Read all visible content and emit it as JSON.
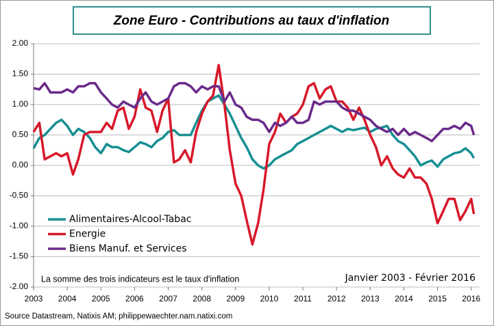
{
  "chart_data": {
    "type": "line",
    "title": "Zone Euro - Contributions au taux d'inflation",
    "note": "La somme  des trois indicateurs est le taux d'inflation",
    "period": "Janvier 2003 - Février 2016",
    "source": "Source Datastream, Natixis AM; philippewaechter.nam.natixi.com",
    "xlim": [
      2003,
      2016.25
    ],
    "xticks": [
      2003,
      2004,
      2005,
      2006,
      2007,
      2008,
      2009,
      2010,
      2011,
      2012,
      2013,
      2014,
      2015,
      2016
    ],
    "ylim": [
      -2,
      2
    ],
    "yticks": [
      {
        "value": 2,
        "label": "2.00"
      },
      {
        "value": 1.5,
        "label": "1.50"
      },
      {
        "value": 1,
        "label": "1.00"
      },
      {
        "value": 0.5,
        "label": "0.50"
      },
      {
        "value": 0,
        "label": "0.00"
      },
      {
        "value": -0.5,
        "label": "-0.50"
      },
      {
        "value": -1,
        "label": "-1.00"
      },
      {
        "value": -1.5,
        "label": "-1.50"
      },
      {
        "value": -2,
        "label": "-2.00"
      }
    ],
    "grid": true,
    "x": [
      2003,
      2003.17,
      2003.33,
      2003.5,
      2003.67,
      2003.83,
      2004,
      2004.17,
      2004.33,
      2004.5,
      2004.67,
      2004.83,
      2005,
      2005.17,
      2005.33,
      2005.5,
      2005.67,
      2005.83,
      2006,
      2006.17,
      2006.33,
      2006.5,
      2006.67,
      2006.83,
      2007,
      2007.17,
      2007.33,
      2007.5,
      2007.67,
      2007.83,
      2008,
      2008.17,
      2008.33,
      2008.5,
      2008.67,
      2008.83,
      2009,
      2009.17,
      2009.33,
      2009.5,
      2009.67,
      2009.83,
      2010,
      2010.17,
      2010.33,
      2010.5,
      2010.67,
      2010.83,
      2011,
      2011.17,
      2011.33,
      2011.5,
      2011.67,
      2011.83,
      2012,
      2012.17,
      2012.33,
      2012.5,
      2012.67,
      2012.83,
      2013,
      2013.17,
      2013.33,
      2013.5,
      2013.67,
      2013.83,
      2014,
      2014.17,
      2014.33,
      2014.5,
      2014.67,
      2014.83,
      2015,
      2015.17,
      2015.33,
      2015.5,
      2015.67,
      2015.83,
      2016,
      2016.08
    ],
    "series": [
      {
        "name": "Alimentaires-Alcool-Tabac",
        "color": "#178f93",
        "values": [
          0.28,
          0.45,
          0.5,
          0.6,
          0.7,
          0.75,
          0.65,
          0.5,
          0.6,
          0.55,
          0.45,
          0.3,
          0.2,
          0.35,
          0.3,
          0.3,
          0.25,
          0.22,
          0.3,
          0.38,
          0.35,
          0.3,
          0.4,
          0.45,
          0.55,
          0.58,
          0.5,
          0.5,
          0.5,
          0.7,
          0.9,
          1.05,
          1.1,
          1.15,
          1.0,
          0.85,
          0.65,
          0.45,
          0.3,
          0.1,
          0.0,
          -0.05,
          0.0,
          0.1,
          0.15,
          0.2,
          0.25,
          0.35,
          0.4,
          0.45,
          0.5,
          0.55,
          0.6,
          0.65,
          0.6,
          0.55,
          0.6,
          0.58,
          0.6,
          0.62,
          0.55,
          0.6,
          0.62,
          0.65,
          0.5,
          0.4,
          0.35,
          0.25,
          0.15,
          0.0,
          0.05,
          0.08,
          -0.02,
          0.1,
          0.15,
          0.2,
          0.22,
          0.28,
          0.2,
          0.12
        ]
      },
      {
        "name": "Energie",
        "color": "#d7182a",
        "values": [
          0.55,
          0.7,
          0.1,
          0.15,
          0.2,
          0.15,
          0.2,
          -0.15,
          0.1,
          0.5,
          0.55,
          0.55,
          0.55,
          0.7,
          0.6,
          0.9,
          0.95,
          0.6,
          0.8,
          1.25,
          0.95,
          0.9,
          0.55,
          0.9,
          1.1,
          0.05,
          0.1,
          0.25,
          0.05,
          0.55,
          0.85,
          1.05,
          1.15,
          1.65,
          1.0,
          0.25,
          -0.3,
          -0.5,
          -0.9,
          -1.3,
          -0.95,
          -0.4,
          0.35,
          0.55,
          0.85,
          0.7,
          0.8,
          0.85,
          1.0,
          1.3,
          1.35,
          1.1,
          1.25,
          1.3,
          1.05,
          1.05,
          0.95,
          0.75,
          0.95,
          0.75,
          0.5,
          0.3,
          0.0,
          0.15,
          -0.05,
          -0.15,
          -0.2,
          -0.05,
          -0.2,
          -0.2,
          -0.3,
          -0.55,
          -0.95,
          -0.75,
          -0.55,
          -0.55,
          -0.9,
          -0.75,
          -0.55,
          -0.8
        ]
      },
      {
        "name": "Biens Manuf. et Services",
        "color": "#6a2a8a",
        "values": [
          1.27,
          1.25,
          1.35,
          1.2,
          1.2,
          1.2,
          1.25,
          1.2,
          1.3,
          1.3,
          1.35,
          1.35,
          1.2,
          1.1,
          1.0,
          0.95,
          1.05,
          1.0,
          0.95,
          1.1,
          1.2,
          1.05,
          1.0,
          1.05,
          1.1,
          1.3,
          1.35,
          1.35,
          1.3,
          1.2,
          1.3,
          1.25,
          1.3,
          1.3,
          1.05,
          1.2,
          1.0,
          0.95,
          0.8,
          0.75,
          0.75,
          0.7,
          0.55,
          0.7,
          0.65,
          0.7,
          0.8,
          0.7,
          0.7,
          0.75,
          1.05,
          1.0,
          1.05,
          1.05,
          1.05,
          0.95,
          0.9,
          0.9,
          0.85,
          0.8,
          0.75,
          0.65,
          0.6,
          0.55,
          0.6,
          0.5,
          0.6,
          0.5,
          0.55,
          0.5,
          0.45,
          0.4,
          0.5,
          0.6,
          0.6,
          0.65,
          0.6,
          0.7,
          0.65,
          0.5
        ]
      }
    ]
  }
}
